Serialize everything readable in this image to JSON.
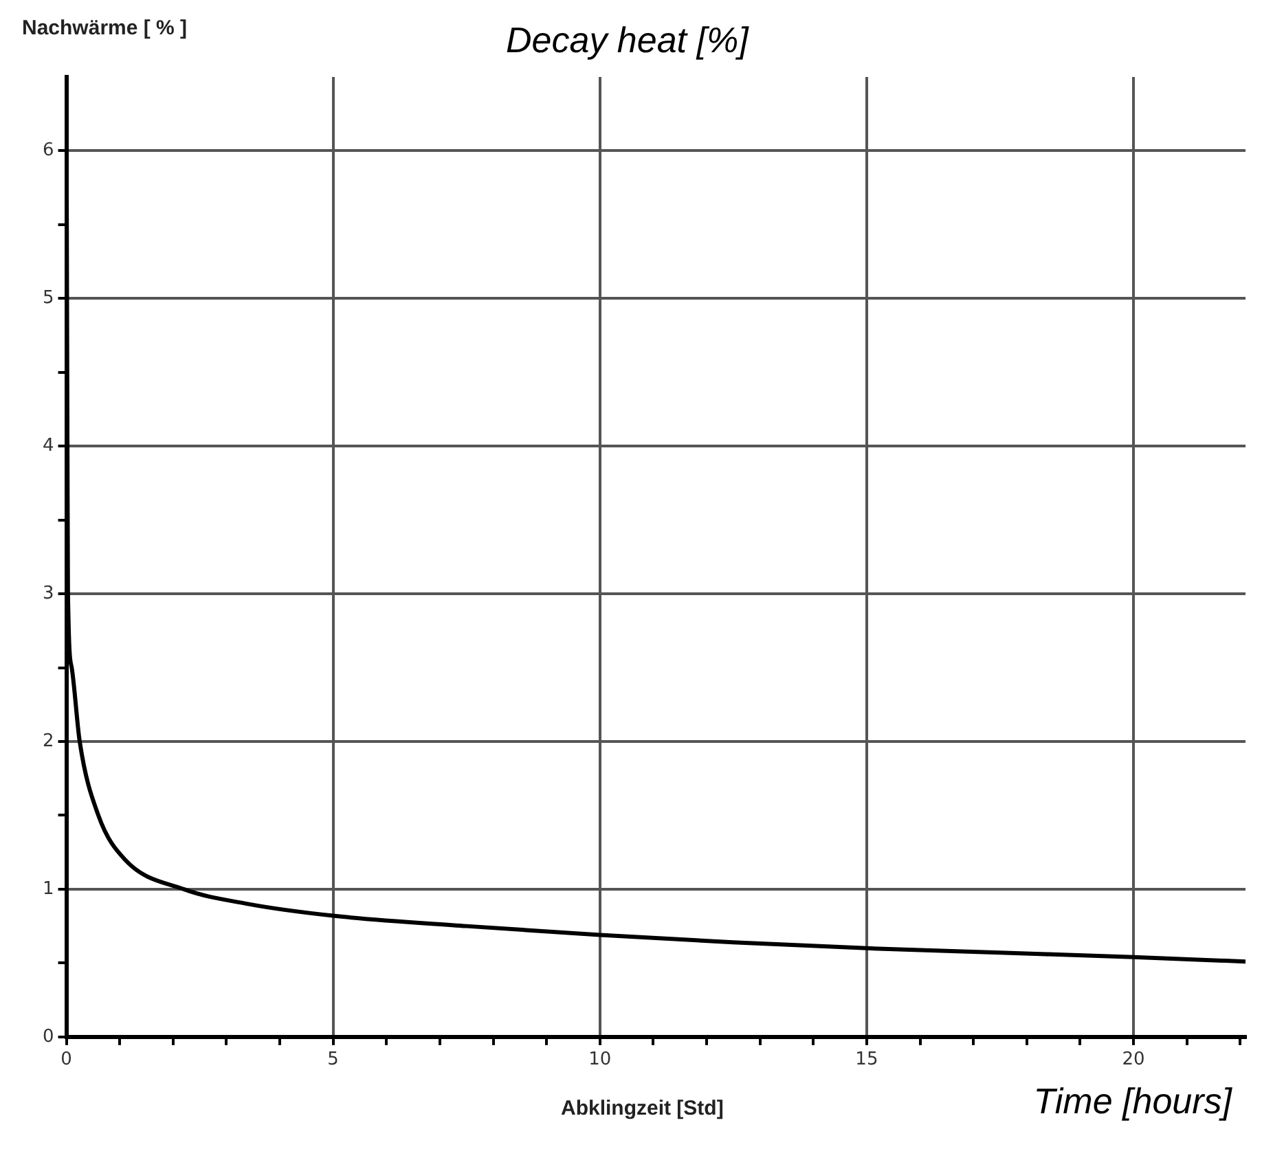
{
  "chart_data": {
    "type": "line",
    "title": "Decay heat [%]",
    "ylabel": "Nachwärme [ % ]",
    "xlabel": "Abklingzeit [Std]",
    "annotations": [
      "Time [hours]"
    ],
    "x": [
      0,
      0.02,
      0.03,
      0.1,
      0.25,
      0.6,
      1.1,
      2.2,
      3.4,
      5,
      7.5,
      10,
      12.5,
      15,
      17.5,
      20,
      22.1
    ],
    "series": [
      {
        "color": "#000000",
        "values": [
          6.5,
          4,
          3,
          2.5,
          2,
          1.5,
          1.2,
          1.0,
          0.9,
          0.82,
          0.75,
          0.69,
          0.64,
          0.6,
          0.57,
          0.54,
          0.51
        ]
      }
    ],
    "xlim": [
      0,
      22.1
    ],
    "ylim": [
      0,
      6.5
    ],
    "xticks": [
      0,
      {
        "value": 1,
        "label": null
      },
      {
        "value": 2,
        "label": null
      },
      {
        "value": 3,
        "label": null
      },
      {
        "value": 4,
        "label": null
      },
      5,
      {
        "value": 6,
        "label": null
      },
      {
        "value": 7,
        "label": null
      },
      {
        "value": 8,
        "label": null
      },
      {
        "value": 9,
        "label": null
      },
      10,
      {
        "value": 11,
        "label": null
      },
      {
        "value": 12,
        "label": null
      },
      {
        "value": 13,
        "label": null
      },
      {
        "value": 14,
        "label": null
      },
      15,
      {
        "value": 16,
        "label": null
      },
      {
        "value": 17,
        "label": null
      },
      {
        "value": 18,
        "label": null
      },
      {
        "value": 19,
        "label": null
      },
      20,
      {
        "value": 21,
        "label": null
      },
      {
        "value": 22,
        "label": null
      }
    ],
    "yticks": [
      0,
      {
        "value": 0.5,
        "label": null
      },
      1,
      {
        "value": 1.5,
        "label": null
      },
      2,
      {
        "value": 2.5,
        "label": null
      },
      3,
      {
        "value": 3.5,
        "label": null
      },
      4,
      {
        "value": 4.5,
        "label": null
      },
      5,
      {
        "value": 5.5,
        "label": null
      },
      6
    ],
    "grid": true,
    "legend": false,
    "marker": "none",
    "line_style": "solid"
  }
}
